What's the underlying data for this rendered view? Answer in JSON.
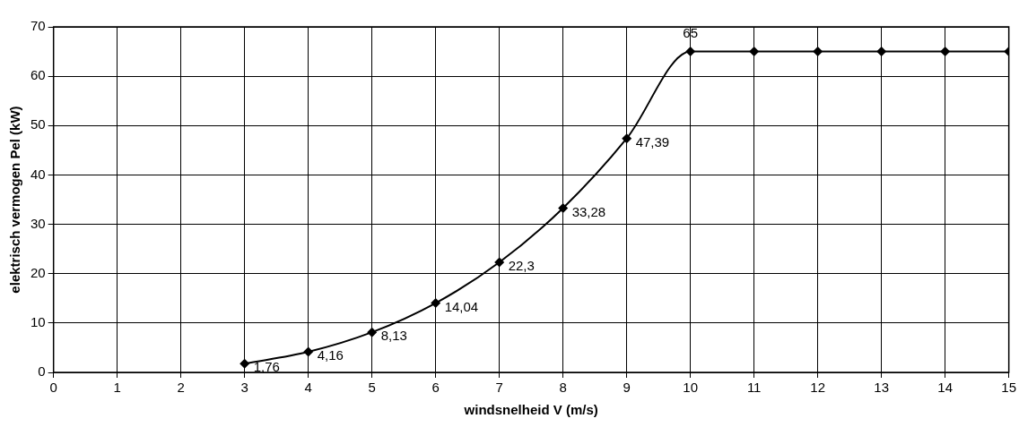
{
  "chart_data": {
    "type": "line",
    "xlabel": "windsnelheid V (m/s)",
    "ylabel": "elektrisch vermogen Pel (kW)",
    "x": [
      3,
      4,
      5,
      6,
      7,
      8,
      9,
      10,
      11,
      12,
      13,
      14,
      15
    ],
    "series": [
      {
        "color": "#000000",
        "values": [
          1.76,
          4.16,
          8.13,
          14.04,
          22.3,
          33.28,
          47.39,
          65,
          65,
          65,
          65,
          65,
          65
        ],
        "value_labels": [
          "1,76",
          "4,16",
          "8,13",
          "14,04",
          "22,3",
          "33,28",
          "47,39",
          "65",
          null,
          null,
          null,
          null,
          null
        ]
      }
    ],
    "xlim": [
      0,
      15
    ],
    "xticks": [
      0,
      1,
      2,
      3,
      4,
      5,
      6,
      7,
      8,
      9,
      10,
      11,
      12,
      13,
      14,
      15
    ],
    "ylim": [
      0,
      70
    ],
    "yticks": [
      0,
      10,
      20,
      30,
      40,
      50,
      60,
      70
    ],
    "grid": true,
    "legend": false,
    "marker": "diamond",
    "line_style": "solid"
  }
}
